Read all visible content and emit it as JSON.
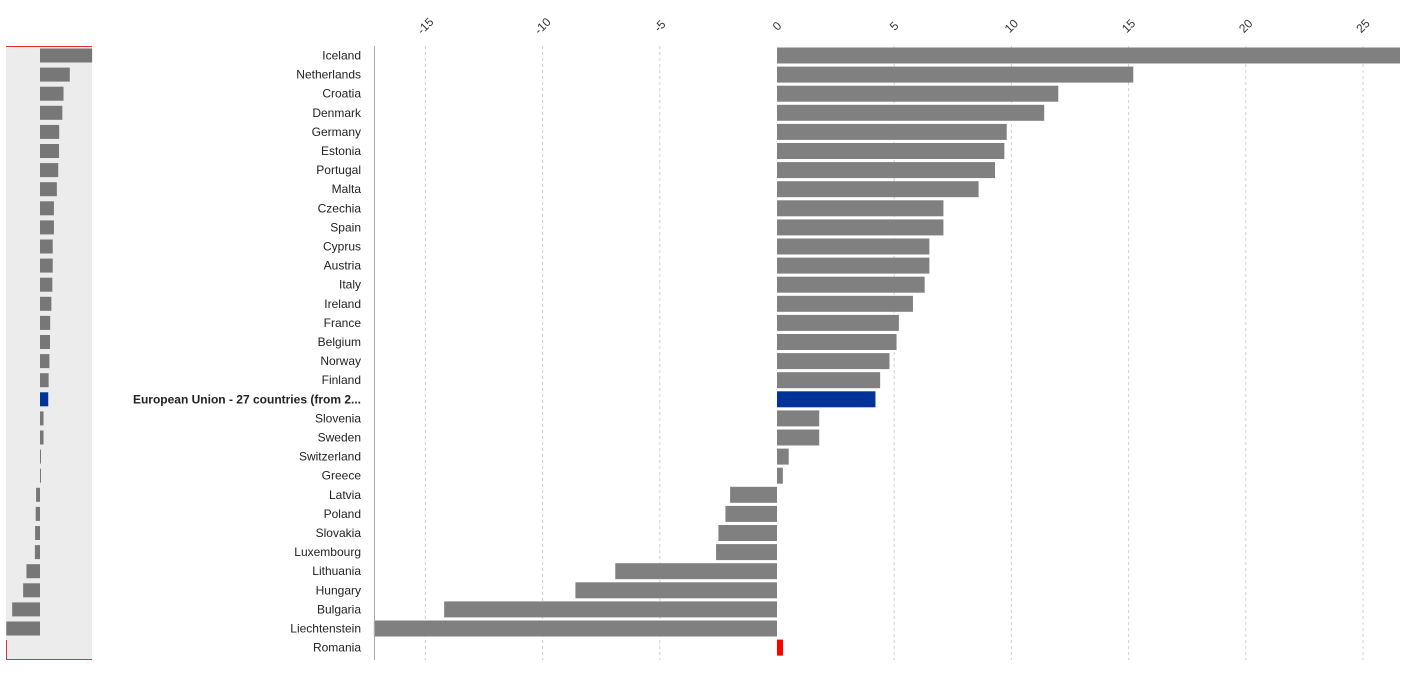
{
  "chart_data": {
    "type": "bar",
    "orientation": "horizontal",
    "xlim": [
      -17.2,
      26.8
    ],
    "x_ticks": [
      "-15",
      "-10",
      "-5",
      "0",
      "5",
      "10",
      "15",
      "20",
      "25"
    ],
    "x_tick_values": [
      -15,
      -10,
      -5,
      0,
      5,
      10,
      15,
      20,
      25
    ],
    "grid": "vertical dashed",
    "colors": {
      "default": "#808080",
      "highlight": "#003399",
      "selected": "#ff0000"
    },
    "categories": [
      "Iceland",
      "Netherlands",
      "Croatia",
      "Denmark",
      "Germany",
      "Estonia",
      "Portugal",
      "Malta",
      "Czechia",
      "Spain",
      "Cyprus",
      "Austria",
      "Italy",
      "Ireland",
      "France",
      "Belgium",
      "Norway",
      "Finland",
      "European Union - 27 countries (from 2...",
      "Slovenia",
      "Sweden",
      "Switzerland",
      "Greece",
      "Latvia",
      "Poland",
      "Slovakia",
      "Luxembourg",
      "Lithuania",
      "Hungary",
      "Bulgaria",
      "Liechtenstein",
      "Romania"
    ],
    "values": [
      26.6,
      15.2,
      12.0,
      11.4,
      9.8,
      9.7,
      9.3,
      8.6,
      7.1,
      7.1,
      6.5,
      6.5,
      6.3,
      5.8,
      5.2,
      5.1,
      4.8,
      4.4,
      4.2,
      1.8,
      1.8,
      0.5,
      0.25,
      -2.0,
      -2.2,
      -2.5,
      -2.6,
      -6.9,
      -8.6,
      -14.2,
      -17.2,
      0.25
    ],
    "highlight_index": 18,
    "selected_index": 31
  }
}
